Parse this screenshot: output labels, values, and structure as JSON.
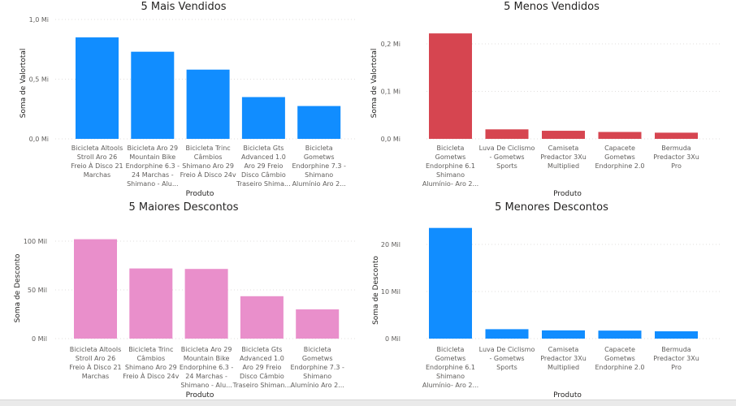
{
  "chart_data": [
    {
      "id": "top-sold",
      "type": "bar",
      "title": "5 Mais Vendidos",
      "xlabel": "Produto",
      "ylabel": "Soma de Valortotal",
      "ylim": [
        0,
        1.0
      ],
      "yticks": [
        {
          "value": 0,
          "label": "0,0 Mi"
        },
        {
          "value": 0.5,
          "label": "0,5 Mi"
        },
        {
          "value": 1.0,
          "label": "1,0 Mi"
        }
      ],
      "color": "#118DFF",
      "categories": [
        [
          "Bicicleta Altools",
          "Stroll Aro 26",
          "Freio À Disco 21",
          "Marchas"
        ],
        [
          "Bicicleta Aro 29",
          "Mountain Bike",
          "Endorphine 6.3 -",
          "24 Marchas -",
          "Shimano - Alu..."
        ],
        [
          "Bicicleta Trinc",
          "Câmbios",
          "Shimano Aro 29",
          "Freio À Disco 24v"
        ],
        [
          "Bicicleta Gts",
          "Advanced 1.0",
          "Aro 29 Freio",
          "Disco Câmbio",
          "Traseiro Shima..."
        ],
        [
          "Bicicleta",
          "Gometws",
          "Endorphine 7.3 -",
          "Shimano",
          "Alumínio Aro 2..."
        ]
      ],
      "values": [
        0.85,
        0.73,
        0.58,
        0.35,
        0.275
      ]
    },
    {
      "id": "least-sold",
      "type": "bar",
      "title": "5 Menos Vendidos",
      "xlabel": "Produto",
      "ylabel": "Soma de Valortotal",
      "ylim": [
        0,
        0.2
      ],
      "yticks": [
        {
          "value": 0,
          "label": "0,0 Mi"
        },
        {
          "value": 0.1,
          "label": "0,1 Mi"
        },
        {
          "value": 0.2,
          "label": "0,2 Mi"
        }
      ],
      "color": "#D64550",
      "categories": [
        [
          "Bicicleta",
          "Gometws",
          "Endorphine 6.1",
          "Shimano",
          "Alumínio- Aro 2..."
        ],
        [
          "Luva De Ciclismo",
          "- Gometws",
          "Sports"
        ],
        [
          "Camiseta",
          "Predactor 3Xu",
          "Multiplied"
        ],
        [
          "Capacete",
          "Gometws",
          "Endorphine 2.0"
        ],
        [
          "Bermuda",
          "Predactor 3Xu",
          "Pro"
        ]
      ],
      "values": [
        0.222,
        0.02,
        0.017,
        0.0145,
        0.013
      ]
    },
    {
      "id": "top-discount",
      "type": "bar",
      "title": "5 Maiores Descontos",
      "xlabel": "Produto",
      "ylabel": "Soma de Desconto",
      "ylim": [
        0,
        100
      ],
      "yticks": [
        {
          "value": 0,
          "label": "0 Mil"
        },
        {
          "value": 50,
          "label": "50 Mil"
        },
        {
          "value": 100,
          "label": "100 Mil"
        }
      ],
      "color": "#E98FCB",
      "categories": [
        [
          "Bicicleta Altools",
          "Stroll Aro 26",
          "Freio À Disco 21",
          "Marchas"
        ],
        [
          "Bicicleta Trinc",
          "Câmbios",
          "Shimano Aro 29",
          "Freio À Disco 24v"
        ],
        [
          "Bicicleta Aro 29",
          "Mountain Bike",
          "Endorphine 6.3 -",
          "24 Marchas -",
          "Shimano - Alu..."
        ],
        [
          "Bicicleta Gts",
          "Advanced 1.0",
          "Aro 29 Freio",
          "Disco Câmbio",
          "Traseiro Shiman..."
        ],
        [
          "Bicicleta",
          "Gometws",
          "Endorphine 7.3 -",
          "Shimano",
          "Alumínio Aro 2..."
        ]
      ],
      "values": [
        102,
        72,
        71.5,
        43.5,
        30
      ]
    },
    {
      "id": "least-discount",
      "type": "bar",
      "title": "5 Menores Descontos",
      "xlabel": "Produto",
      "ylabel": "Soma de Desconto",
      "ylim": [
        0,
        20
      ],
      "yticks": [
        {
          "value": 0,
          "label": "0 Mil"
        },
        {
          "value": 10,
          "label": "10 Mil"
        },
        {
          "value": 20,
          "label": "20 Mil"
        }
      ],
      "color": "#118DFF",
      "categories": [
        [
          "Bicicleta",
          "Gometws",
          "Endorphine 6.1",
          "Shimano",
          "Alumínio- Aro 2..."
        ],
        [
          "Luva De Ciclismo",
          "- Gometws",
          "Sports"
        ],
        [
          "Camiseta",
          "Predactor 3Xu",
          "Multiplied"
        ],
        [
          "Capacete",
          "Gometws",
          "Endorphine 2.0"
        ],
        [
          "Bermuda",
          "Predactor 3Xu",
          "Pro"
        ]
      ],
      "values": [
        23.5,
        2.0,
        1.75,
        1.7,
        1.55
      ]
    }
  ]
}
